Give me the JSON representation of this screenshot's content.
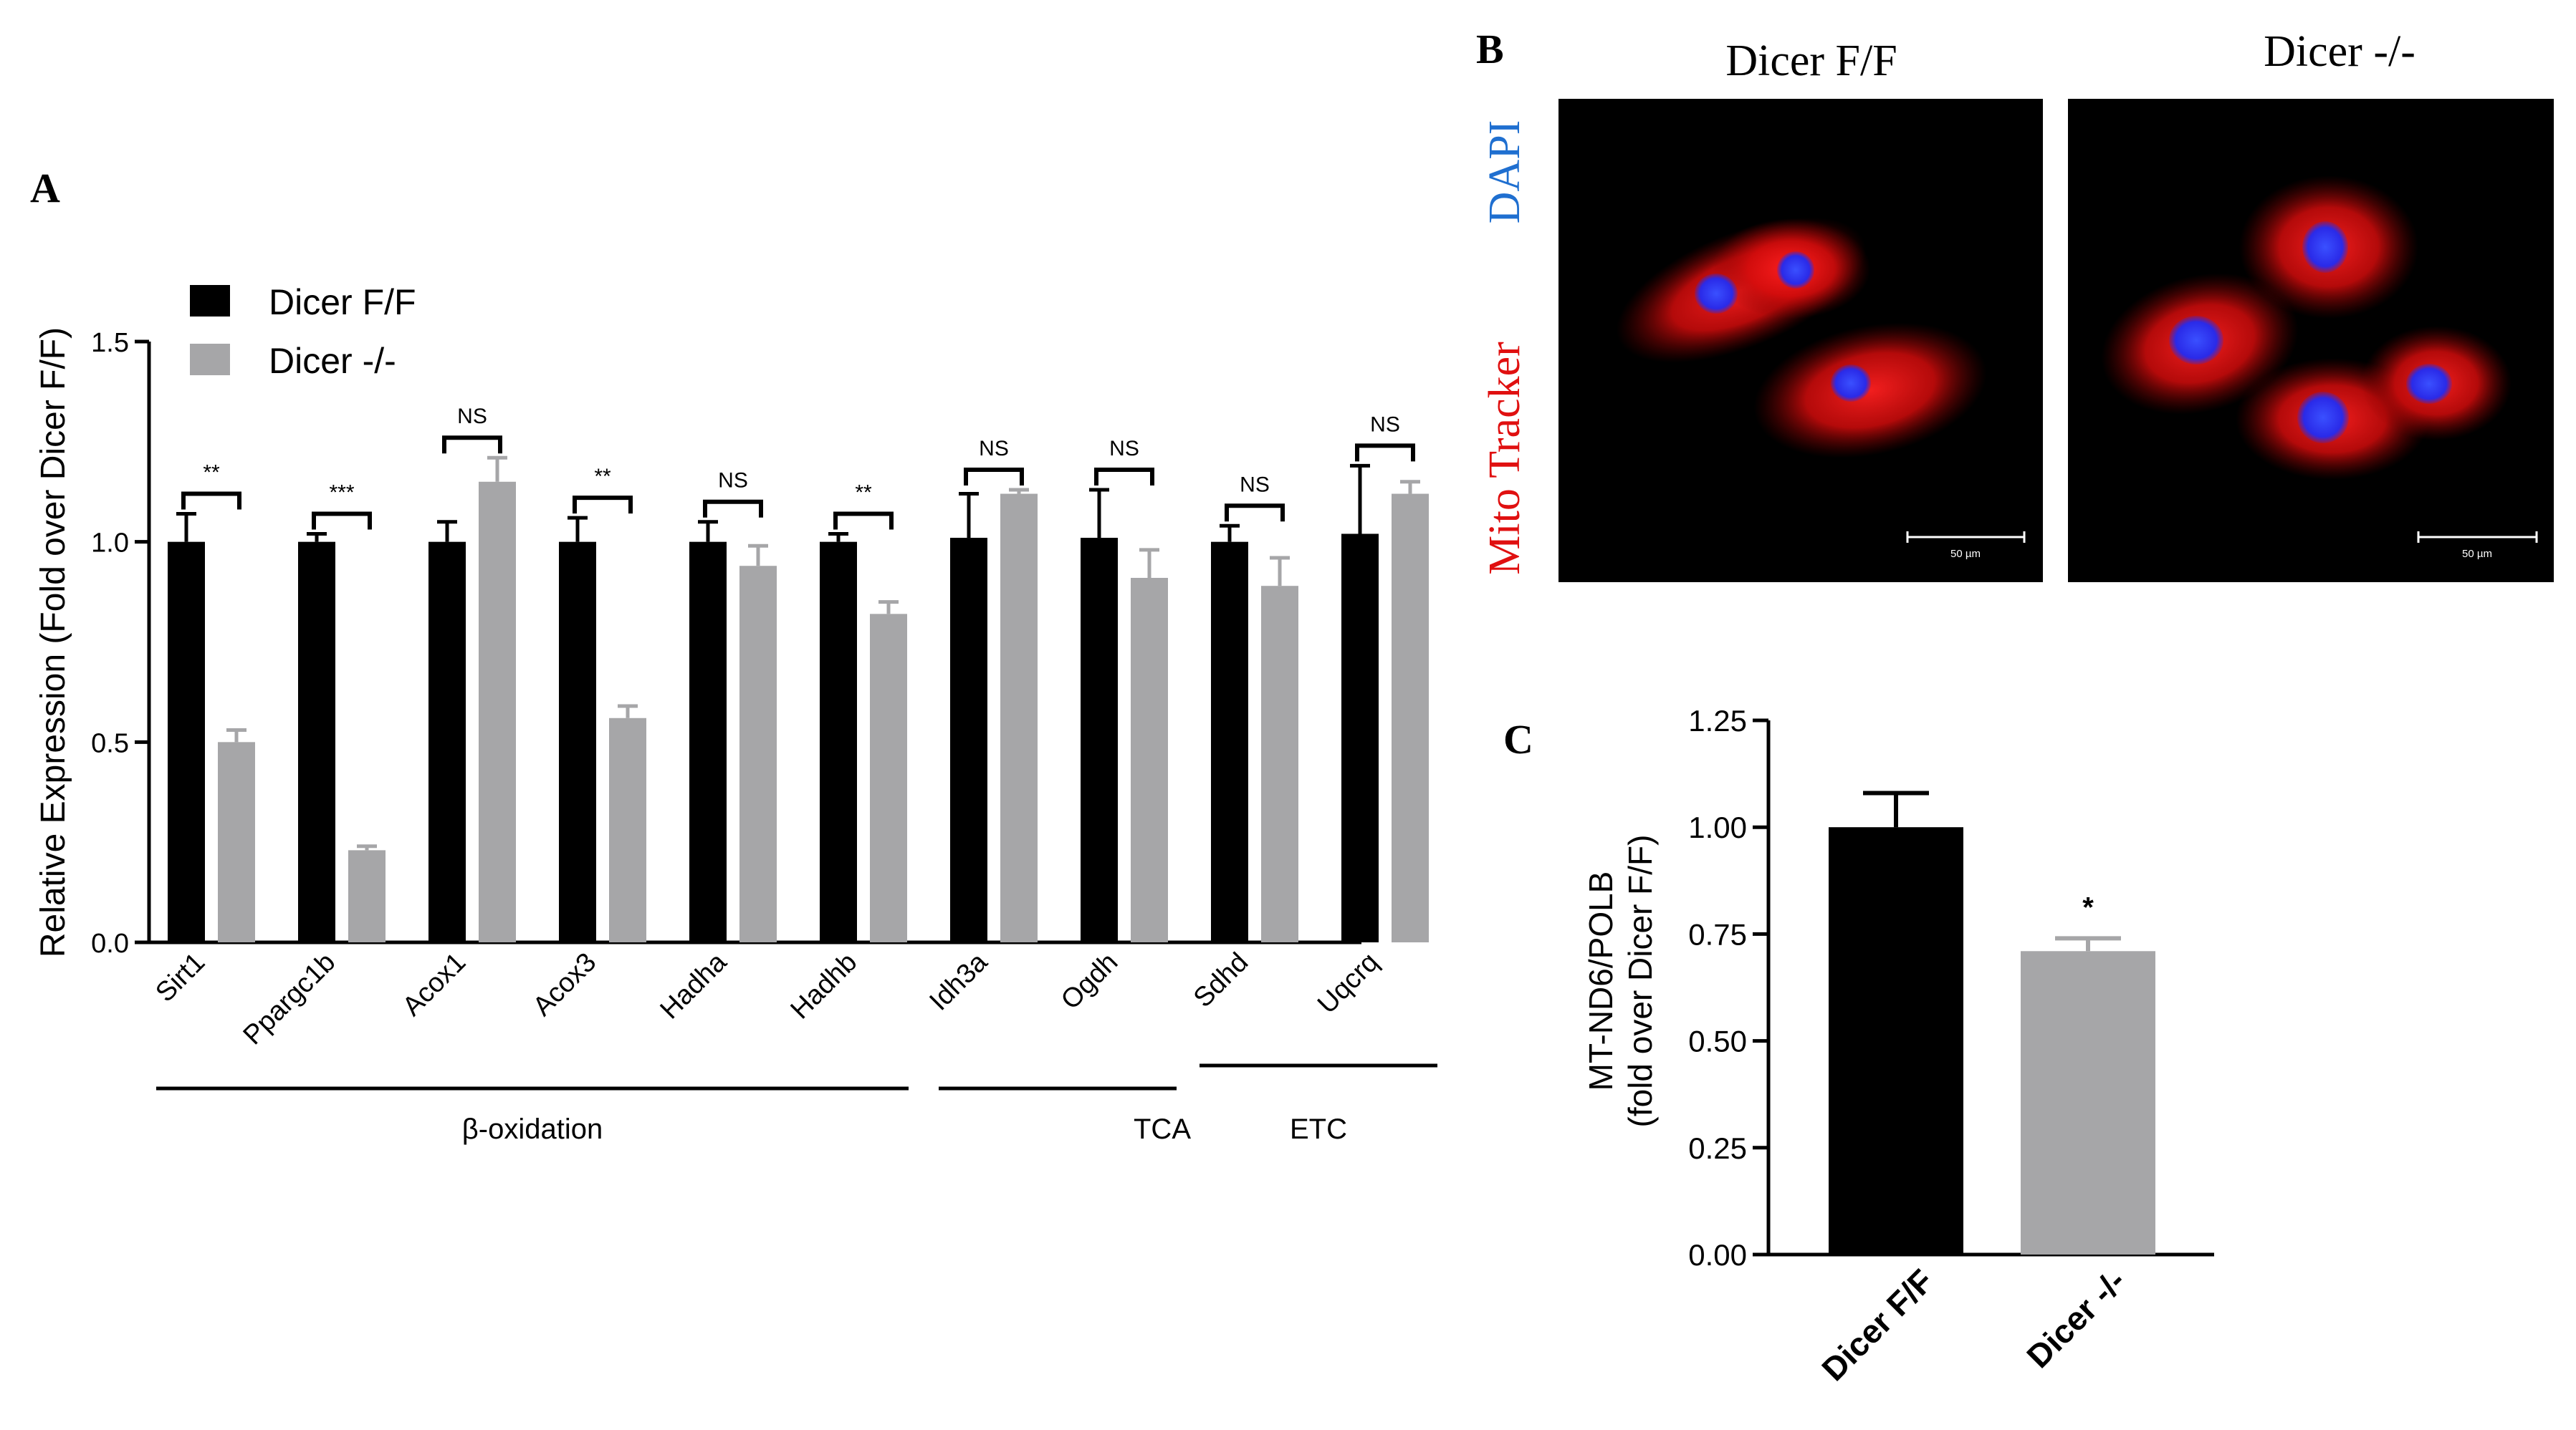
{
  "panels": {
    "a": "A",
    "b": "B",
    "c": "C"
  },
  "chart_data": [
    {
      "type": "bar",
      "panel": "A",
      "title": "",
      "ylabel": "Relative Expression (Fold over Dicer F/F)",
      "xlabel": "",
      "ylim": [
        0,
        1.5
      ],
      "yticks": [
        "0.0",
        "0.5",
        "1.0",
        "1.5"
      ],
      "legend": {
        "position": "top-left",
        "entries": [
          "Dicer F/F",
          "Dicer -/-"
        ]
      },
      "categories": [
        "Sirt1",
        "Ppargc1b",
        "Acox1",
        "Acox3",
        "Hadha",
        "Hadhb",
        "Idh3a",
        "Ogdh",
        "Sdhd",
        "Uqcrq"
      ],
      "series": [
        {
          "name": "Dicer F/F",
          "color": "#000000",
          "values": [
            1.0,
            1.0,
            1.0,
            1.0,
            1.0,
            1.0,
            1.01,
            1.01,
            1.0,
            1.02
          ],
          "errors": [
            0.07,
            0.02,
            0.05,
            0.06,
            0.05,
            0.02,
            0.11,
            0.12,
            0.04,
            0.17
          ]
        },
        {
          "name": "Dicer -/-",
          "color": "#a6a6a8",
          "values": [
            0.5,
            0.23,
            1.15,
            0.56,
            0.94,
            0.82,
            1.12,
            0.91,
            0.89,
            1.12
          ],
          "errors": [
            0.03,
            0.01,
            0.06,
            0.03,
            0.05,
            0.03,
            0.01,
            0.07,
            0.07,
            0.03
          ]
        }
      ],
      "significance": [
        "**",
        "***",
        "NS",
        "**",
        "NS",
        "**",
        "NS",
        "NS",
        "NS",
        "NS"
      ],
      "groups": [
        {
          "label": "β-oxidation",
          "from": 0,
          "to": 5
        },
        {
          "label": "TCA",
          "from": 6,
          "to": 7
        },
        {
          "label": "ETC",
          "from": 8,
          "to": 9
        }
      ]
    },
    {
      "type": "bar",
      "panel": "C",
      "title": "",
      "ylabel_line1": "MT-ND6/POLB",
      "ylabel_line2": "(fold over Dicer F/F)",
      "xlabel": "",
      "ylim": [
        0,
        1.25
      ],
      "yticks": [
        "0.00",
        "0.25",
        "0.50",
        "0.75",
        "1.00",
        "1.25"
      ],
      "categories": [
        "Dicer F/F",
        "Dicer -/-"
      ],
      "values": [
        1.0,
        0.71
      ],
      "errors": [
        0.08,
        0.03
      ],
      "colors": [
        "#000000",
        "#a6a6a8"
      ],
      "significance": [
        "",
        "*"
      ]
    }
  ],
  "micrographs": {
    "columns": [
      "Dicer F/F",
      "Dicer -/-"
    ],
    "stain_dapi": "DAPI",
    "stain_mito": "Mito Tracker",
    "scale_bar": "50 µm",
    "dapi_color": "#1f6fd0",
    "mito_color": "#e01010"
  }
}
